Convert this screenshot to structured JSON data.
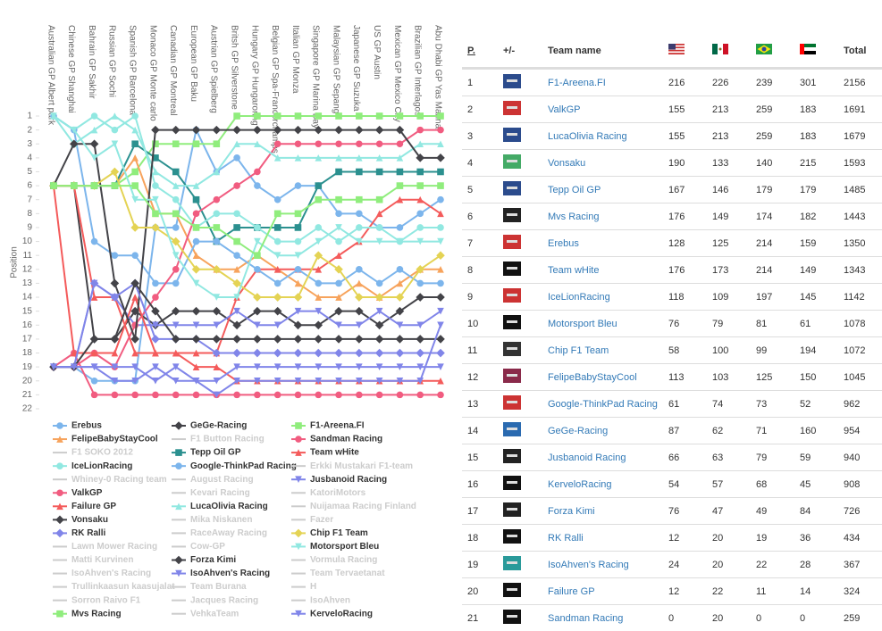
{
  "chart_data": {
    "type": "line",
    "y_label": "Position",
    "categories": [
      "Australian GP Albert park",
      "Chinese GP Shanghai",
      "Bahrain GP Sakhir",
      "Russian GP Sochi",
      "Spanish GP Barcelona",
      "Monaco GP Monte carlo",
      "Canadian GP Montreal",
      "European GP Baku",
      "Austrian GP Spielberg",
      "Britsh GP Silverstone",
      "Hungary GP Hungaroring",
      "Belgian GP Spa-Francorchamps",
      "Italian GP Monza",
      "Singapore GP Marina Bay",
      "Malaysian GP Sepang",
      "Japanese GP Suzuka",
      "US GP Austin",
      "Mexican GP Mexico City",
      "Brazilian GP Interlagos",
      "Abu Dhabi GP Yas Marina"
    ],
    "ylim": [
      1,
      22
    ],
    "reversed": true,
    "yticks": [
      1,
      2,
      3,
      4,
      5,
      6,
      7,
      8,
      9,
      10,
      11,
      12,
      13,
      14,
      15,
      16,
      17,
      18,
      19,
      20,
      21,
      22
    ],
    "series": [
      {
        "name": "Erebus",
        "color": "#7cb5ec",
        "marker": "circle",
        "values": [
          19,
          19,
          20,
          20,
          20,
          9,
          9,
          2,
          5,
          4,
          6,
          7,
          6,
          6,
          8,
          8,
          9,
          9,
          8,
          7
        ]
      },
      {
        "name": "GeGe-Racing",
        "color": "#434348",
        "marker": "diamond",
        "values": [
          6,
          6,
          17,
          17,
          15,
          16,
          15,
          15,
          15,
          16,
          15,
          15,
          16,
          16,
          15,
          15,
          16,
          15,
          14,
          14
        ]
      },
      {
        "name": "F1-Areena.FI",
        "color": "#90ed7d",
        "marker": "square",
        "values": [
          6,
          6,
          6,
          6,
          5,
          3,
          3,
          3,
          3,
          1,
          1,
          1,
          1,
          1,
          1,
          1,
          1,
          1,
          1,
          1
        ]
      },
      {
        "name": "FelipeBabyStayCool",
        "color": "#f7a35c",
        "marker": "triangle",
        "values": [
          6,
          6,
          6,
          6,
          4,
          8,
          8,
          11,
          12,
          12,
          11,
          12,
          13,
          14,
          14,
          13,
          14,
          13,
          12,
          12
        ]
      },
      {
        "name": "F1 Button Racing",
        "color": "#cccccc",
        "visible": false
      },
      {
        "name": "Sandman Racing",
        "color": "#f15c80",
        "marker": "circle",
        "values": [
          19,
          18,
          21,
          21,
          21,
          21,
          21,
          21,
          21,
          21,
          21,
          21,
          21,
          21,
          21,
          21,
          21,
          21,
          21,
          21
        ]
      },
      {
        "name": "F1 SOKO 2012",
        "color": "#cccccc",
        "visible": false
      },
      {
        "name": "Tepp Oil GP",
        "color": "#2b908f",
        "marker": "square",
        "values": [
          6,
          6,
          6,
          6,
          3,
          4,
          5,
          7,
          10,
          9,
          9,
          9,
          9,
          6,
          5,
          5,
          5,
          5,
          5,
          5
        ]
      },
      {
        "name": "Team wHite",
        "color": "#f45b5b",
        "marker": "triangle",
        "values": [
          6,
          6,
          14,
          14,
          18,
          18,
          18,
          18,
          18,
          14,
          12,
          12,
          12,
          12,
          11,
          10,
          8,
          7,
          7,
          8
        ]
      },
      {
        "name": "IceLionRacing",
        "color": "#91e8e1",
        "marker": "circle",
        "values": [
          1,
          2,
          1,
          2,
          1,
          6,
          7,
          9,
          8,
          8,
          9,
          10,
          10,
          9,
          10,
          9,
          9,
          10,
          9,
          9
        ]
      },
      {
        "name": "Google-ThinkPad Racing",
        "color": "#7cb5ec",
        "marker": "circle",
        "values": [
          1,
          2,
          10,
          11,
          11,
          13,
          13,
          10,
          10,
          11,
          12,
          13,
          12,
          13,
          13,
          12,
          13,
          12,
          13,
          13
        ]
      },
      {
        "name": "Erkki Mustakari F1-team",
        "color": "#cccccc",
        "visible": false
      },
      {
        "name": "Whiney-0 Racing team",
        "color": "#cccccc",
        "visible": false
      },
      {
        "name": "August Racing",
        "color": "#cccccc",
        "visible": false
      },
      {
        "name": "Jusbanoid Racing",
        "color": "#8085e9",
        "marker": "triangle-down",
        "values": [
          19,
          19,
          13,
          14,
          16,
          16,
          16,
          16,
          16,
          15,
          16,
          16,
          15,
          15,
          16,
          16,
          15,
          16,
          16,
          15
        ]
      },
      {
        "name": "ValkGP",
        "color": "#f15c80",
        "marker": "circle",
        "values": [
          19,
          19,
          18,
          19,
          16,
          14,
          12,
          8,
          7,
          6,
          5,
          3,
          3,
          3,
          3,
          3,
          3,
          3,
          2,
          2
        ]
      },
      {
        "name": "Kevari Racing",
        "color": "#cccccc",
        "visible": false
      },
      {
        "name": "KatoriMotors",
        "color": "#cccccc",
        "visible": false
      },
      {
        "name": "Failure GP",
        "color": "#f45b5b",
        "marker": "triangle",
        "values": [
          6,
          18,
          18,
          18,
          14,
          18,
          18,
          19,
          19,
          20,
          20,
          20,
          20,
          20,
          20,
          20,
          20,
          20,
          20,
          20
        ]
      },
      {
        "name": "LucaOlivia Racing",
        "color": "#91e8e1",
        "marker": "triangle",
        "values": [
          1,
          3,
          2,
          1,
          2,
          5,
          6,
          6,
          5,
          3,
          3,
          4,
          4,
          4,
          4,
          4,
          4,
          4,
          3,
          3
        ]
      },
      {
        "name": "Nuijamaa Racing Finland",
        "color": "#cccccc",
        "visible": false
      },
      {
        "name": "Vonsaku",
        "color": "#434348",
        "marker": "diamond",
        "values": [
          6,
          3,
          3,
          13,
          17,
          2,
          2,
          2,
          2,
          2,
          2,
          2,
          2,
          2,
          2,
          2,
          2,
          2,
          4,
          4
        ]
      },
      {
        "name": "Mika Niskanen",
        "color": "#cccccc",
        "visible": false
      },
      {
        "name": "Fazer",
        "color": "#cccccc",
        "visible": false
      },
      {
        "name": "RK Ralli",
        "color": "#8085e9",
        "marker": "diamond",
        "values": [
          19,
          19,
          13,
          14,
          13,
          17,
          17,
          17,
          18,
          18,
          18,
          18,
          18,
          18,
          18,
          18,
          18,
          18,
          18,
          18
        ]
      },
      {
        "name": "RaceAway Racing",
        "color": "#cccccc",
        "visible": false
      },
      {
        "name": "Chip F1 Team",
        "color": "#e4d354",
        "marker": "diamond",
        "values": [
          6,
          6,
          6,
          5,
          9,
          9,
          10,
          12,
          12,
          13,
          14,
          14,
          14,
          11,
          12,
          14,
          14,
          14,
          12,
          11
        ]
      },
      {
        "name": "Lawn Mower Racing",
        "color": "#cccccc",
        "visible": false
      },
      {
        "name": "Cow-GP",
        "color": "#cccccc",
        "visible": false
      },
      {
        "name": "Motorsport Bleu",
        "color": "#91e8e1",
        "marker": "triangle-down",
        "values": [
          1,
          2,
          4,
          3,
          7,
          7,
          11,
          13,
          14,
          14,
          10,
          11,
          11,
          10,
          9,
          10,
          10,
          10,
          10,
          10
        ]
      },
      {
        "name": "Matti Kurvinen",
        "color": "#cccccc",
        "visible": false
      },
      {
        "name": "Forza Kimi",
        "color": "#434348",
        "marker": "diamond",
        "values": [
          19,
          19,
          17,
          17,
          13,
          15,
          17,
          17,
          17,
          17,
          17,
          17,
          17,
          17,
          17,
          17,
          17,
          17,
          17,
          17
        ]
      },
      {
        "name": "Vormula Racing",
        "color": "#cccccc",
        "visible": false
      },
      {
        "name": "IsoAhven's Racing",
        "color": "#cccccc",
        "visible": false
      },
      {
        "name": "IsoAhven's Racing",
        "color": "#8085e9",
        "marker": "triangle-down",
        "values": [
          19,
          19,
          19,
          19,
          19,
          20,
          19,
          20,
          20,
          19,
          19,
          19,
          19,
          19,
          19,
          19,
          19,
          19,
          19,
          19
        ]
      },
      {
        "name": "Team Tervaetanat",
        "color": "#cccccc",
        "visible": false
      },
      {
        "name": "Trullinkaasun kaasujalat",
        "color": "#cccccc",
        "visible": false
      },
      {
        "name": "Team Burana",
        "color": "#cccccc",
        "visible": false
      },
      {
        "name": "H",
        "color": "#cccccc",
        "visible": false
      },
      {
        "name": "Sorron Raivo F1",
        "color": "#cccccc",
        "visible": false
      },
      {
        "name": "Jacques Racing",
        "color": "#cccccc",
        "visible": false
      },
      {
        "name": "IsoAhven",
        "color": "#cccccc",
        "visible": false
      },
      {
        "name": "Mvs Racing",
        "color": "#90ed7d",
        "marker": "square",
        "values": [
          6,
          6,
          6,
          6,
          6,
          8,
          8,
          9,
          9,
          10,
          11,
          8,
          8,
          7,
          7,
          7,
          7,
          6,
          6,
          6
        ]
      },
      {
        "name": "VehkaTeam",
        "color": "#cccccc",
        "visible": false
      },
      {
        "name": "KerveloRacing",
        "color": "#8085e9",
        "marker": "triangle-down",
        "values": [
          19,
          19,
          19,
          20,
          20,
          19,
          20,
          20,
          21,
          20,
          20,
          20,
          20,
          20,
          20,
          20,
          20,
          20,
          20,
          16
        ]
      }
    ]
  },
  "table": {
    "headers": {
      "position": "P.",
      "change": "+/-",
      "team": "Team name",
      "total": "Total"
    },
    "rows": [
      [
        1,
        "F1-Areena.FI",
        216,
        226,
        239,
        301,
        2156
      ],
      [
        2,
        "ValkGP",
        155,
        213,
        259,
        183,
        1691
      ],
      [
        3,
        "LucaOlivia Racing",
        155,
        213,
        259,
        183,
        1679
      ],
      [
        4,
        "Vonsaku",
        190,
        133,
        140,
        215,
        1593
      ],
      [
        5,
        "Tepp Oil GP",
        167,
        146,
        179,
        179,
        1485
      ],
      [
        6,
        "Mvs Racing",
        176,
        149,
        174,
        182,
        1443
      ],
      [
        7,
        "Erebus",
        128,
        125,
        214,
        159,
        1350
      ],
      [
        8,
        "Team wHite",
        176,
        173,
        214,
        149,
        1343
      ],
      [
        9,
        "IceLionRacing",
        118,
        109,
        197,
        145,
        1142
      ],
      [
        10,
        "Motorsport Bleu",
        76,
        79,
        81,
        61,
        1078
      ],
      [
        11,
        "Chip F1 Team",
        58,
        100,
        99,
        194,
        1072
      ],
      [
        12,
        "FelipeBabyStayCool",
        113,
        103,
        125,
        150,
        1045
      ],
      [
        13,
        "Google-ThinkPad Racing",
        61,
        74,
        73,
        52,
        962
      ],
      [
        14,
        "GeGe-Racing",
        87,
        62,
        71,
        160,
        954
      ],
      [
        15,
        "Jusbanoid Racing",
        66,
        63,
        79,
        59,
        940
      ],
      [
        16,
        "KerveloRacing",
        54,
        57,
        68,
        45,
        908
      ],
      [
        17,
        "Forza Kimi",
        76,
        47,
        49,
        84,
        726
      ],
      [
        18,
        "RK Ralli",
        12,
        20,
        19,
        36,
        434
      ],
      [
        19,
        "IsoAhven's Racing",
        24,
        20,
        22,
        28,
        367
      ],
      [
        20,
        "Failure GP",
        12,
        22,
        11,
        14,
        324
      ],
      [
        21,
        "Sandman Racing",
        0,
        20,
        0,
        0,
        259
      ]
    ]
  }
}
